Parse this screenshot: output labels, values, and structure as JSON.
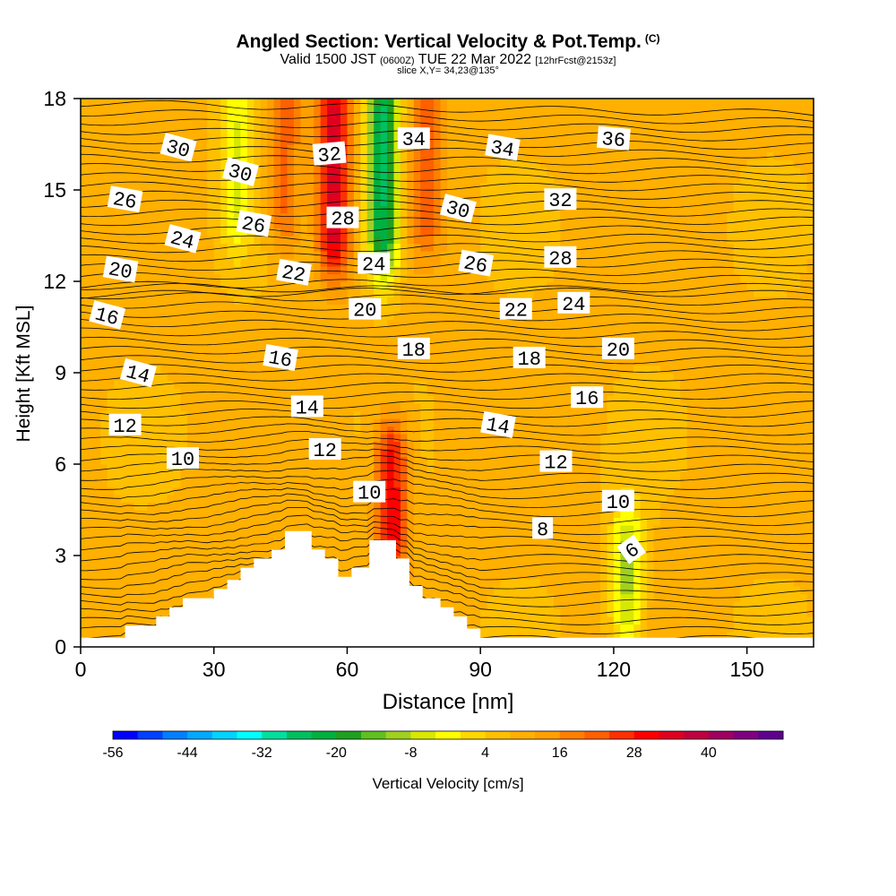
{
  "title": {
    "main": "Angled Section: Vertical Velocity & Pot.Temp.",
    "main_suffix": "(C)",
    "valid_prefix": "Valid 1500 JST",
    "valid_utc": "(0600Z)",
    "valid_date": "TUE 22 Mar 2022",
    "forecast": "[12hrFcst@2153z]",
    "slice": "slice X,Y= 34,23@135°"
  },
  "chart_data": {
    "type": "heatmap",
    "xlabel": "Distance [nm]",
    "ylabel": "Height [Kft MSL]",
    "xlim": [
      0,
      165
    ],
    "ylim": [
      0,
      18
    ],
    "xticks": [
      0,
      30,
      60,
      90,
      120,
      150
    ],
    "yticks": [
      0,
      3,
      6,
      9,
      12,
      15,
      18
    ],
    "field": "Vertical Velocity [cm/s]",
    "colorbar": {
      "label": "Vertical Velocity [cm/s]",
      "tick_labels": [
        -56,
        -44,
        -32,
        -20,
        -8,
        4,
        16,
        28,
        40
      ],
      "colors": [
        "#0000ff",
        "#0040ff",
        "#0080ff",
        "#00aaff",
        "#00d4ff",
        "#00ffff",
        "#00e0a0",
        "#00c060",
        "#00b040",
        "#20a020",
        "#60c020",
        "#a0d020",
        "#d8e800",
        "#ffff00",
        "#ffd800",
        "#ffc000",
        "#ffb000",
        "#ffa000",
        "#ff8000",
        "#ff6000",
        "#ff3000",
        "#ff0000",
        "#e00020",
        "#c00040",
        "#a00060",
        "#800080",
        "#600090"
      ]
    },
    "velocity_features": [
      {
        "x": 57,
        "y_range": [
          13,
          18
        ],
        "w": 30,
        "note": "updraft"
      },
      {
        "x": 46,
        "y_range": [
          14,
          18
        ],
        "w": 18,
        "note": "updraft"
      },
      {
        "x": 68,
        "y_range": [
          13,
          18
        ],
        "w": -30,
        "note": "downdraft"
      },
      {
        "x": 78,
        "y_range": [
          14,
          18
        ],
        "w": 18,
        "note": "updraft"
      },
      {
        "x": 35,
        "y_range": [
          14,
          18
        ],
        "w": -8,
        "note": "downdraft"
      },
      {
        "x": 70,
        "y_range": [
          4,
          6
        ],
        "w": 28,
        "note": "updraft"
      },
      {
        "x": 123,
        "y_range": [
          1.5,
          3
        ],
        "w": -14,
        "note": "downdraft"
      }
    ],
    "terrain": [
      [
        0,
        0.3
      ],
      [
        10,
        0.3
      ],
      [
        10,
        0.7
      ],
      [
        17,
        0.7
      ],
      [
        17,
        1.0
      ],
      [
        20,
        1.0
      ],
      [
        20,
        1.3
      ],
      [
        23,
        1.3
      ],
      [
        23,
        1.6
      ],
      [
        30,
        1.6
      ],
      [
        30,
        1.9
      ],
      [
        33,
        1.9
      ],
      [
        33,
        2.2
      ],
      [
        36,
        2.2
      ],
      [
        36,
        2.6
      ],
      [
        39,
        2.6
      ],
      [
        39,
        2.9
      ],
      [
        43,
        2.9
      ],
      [
        43,
        3.2
      ],
      [
        46,
        3.2
      ],
      [
        46,
        3.8
      ],
      [
        52,
        3.8
      ],
      [
        52,
        3.2
      ],
      [
        55,
        3.2
      ],
      [
        55,
        2.9
      ],
      [
        58,
        2.9
      ],
      [
        58,
        2.3
      ],
      [
        61,
        2.3
      ],
      [
        61,
        2.6
      ],
      [
        65,
        2.6
      ],
      [
        65,
        3.5
      ],
      [
        71,
        3.5
      ],
      [
        71,
        2.9
      ],
      [
        74,
        2.9
      ],
      [
        74,
        2.0
      ],
      [
        77,
        2.0
      ],
      [
        77,
        1.6
      ],
      [
        81,
        1.6
      ],
      [
        81,
        1.3
      ],
      [
        84,
        1.3
      ],
      [
        84,
        1.0
      ],
      [
        87,
        1.0
      ],
      [
        87,
        0.6
      ],
      [
        90,
        0.6
      ],
      [
        90,
        0.3
      ],
      [
        165,
        0.3
      ]
    ],
    "contour_labels": [
      {
        "v": "30",
        "x": 22,
        "y": 16.4,
        "r": 15
      },
      {
        "v": "30",
        "x": 36,
        "y": 15.6,
        "r": 15
      },
      {
        "v": "32",
        "x": 56,
        "y": 16.2,
        "r": -5
      },
      {
        "v": "34",
        "x": 75,
        "y": 16.7,
        "r": 0
      },
      {
        "v": "34",
        "x": 95,
        "y": 16.4,
        "r": 10
      },
      {
        "v": "36",
        "x": 120,
        "y": 16.7,
        "r": 5
      },
      {
        "v": "26",
        "x": 10,
        "y": 14.7,
        "r": 10
      },
      {
        "v": "26",
        "x": 39,
        "y": 13.9,
        "r": 10
      },
      {
        "v": "28",
        "x": 59,
        "y": 14.1,
        "r": 0
      },
      {
        "v": "30",
        "x": 85,
        "y": 14.4,
        "r": 15
      },
      {
        "v": "32",
        "x": 108,
        "y": 14.7,
        "r": 0
      },
      {
        "v": "24",
        "x": 23,
        "y": 13.4,
        "r": 15
      },
      {
        "v": "24",
        "x": 66,
        "y": 12.6,
        "r": 0
      },
      {
        "v": "26",
        "x": 89,
        "y": 12.6,
        "r": 10
      },
      {
        "v": "28",
        "x": 108,
        "y": 12.8,
        "r": 0
      },
      {
        "v": "20",
        "x": 9,
        "y": 12.4,
        "r": 10
      },
      {
        "v": "22",
        "x": 48,
        "y": 12.3,
        "r": 10
      },
      {
        "v": "20",
        "x": 64,
        "y": 11.1,
        "r": 0
      },
      {
        "v": "22",
        "x": 98,
        "y": 11.1,
        "r": 0
      },
      {
        "v": "24",
        "x": 111,
        "y": 11.3,
        "r": 0
      },
      {
        "v": "16",
        "x": 6,
        "y": 10.9,
        "r": 15
      },
      {
        "v": "18",
        "x": 75,
        "y": 9.8,
        "r": 0
      },
      {
        "v": "18",
        "x": 101,
        "y": 9.5,
        "r": 0
      },
      {
        "v": "20",
        "x": 121,
        "y": 9.8,
        "r": 0
      },
      {
        "v": "16",
        "x": 45,
        "y": 9.5,
        "r": 10
      },
      {
        "v": "14",
        "x": 13,
        "y": 9.0,
        "r": 15
      },
      {
        "v": "14",
        "x": 51,
        "y": 7.9,
        "r": 0
      },
      {
        "v": "16",
        "x": 114,
        "y": 8.2,
        "r": 0
      },
      {
        "v": "14",
        "x": 94,
        "y": 7.3,
        "r": 10
      },
      {
        "v": "12",
        "x": 10,
        "y": 7.3,
        "r": 0
      },
      {
        "v": "12",
        "x": 55,
        "y": 6.5,
        "r": 0
      },
      {
        "v": "12",
        "x": 107,
        "y": 6.1,
        "r": 0
      },
      {
        "v": "10",
        "x": 23,
        "y": 6.2,
        "r": 0
      },
      {
        "v": "10",
        "x": 65,
        "y": 5.1,
        "r": 0
      },
      {
        "v": "10",
        "x": 121,
        "y": 4.8,
        "r": 0
      },
      {
        "v": "8",
        "x": 104,
        "y": 3.9,
        "r": 0
      },
      {
        "v": "6",
        "x": 124,
        "y": 3.2,
        "r": -35
      }
    ]
  }
}
